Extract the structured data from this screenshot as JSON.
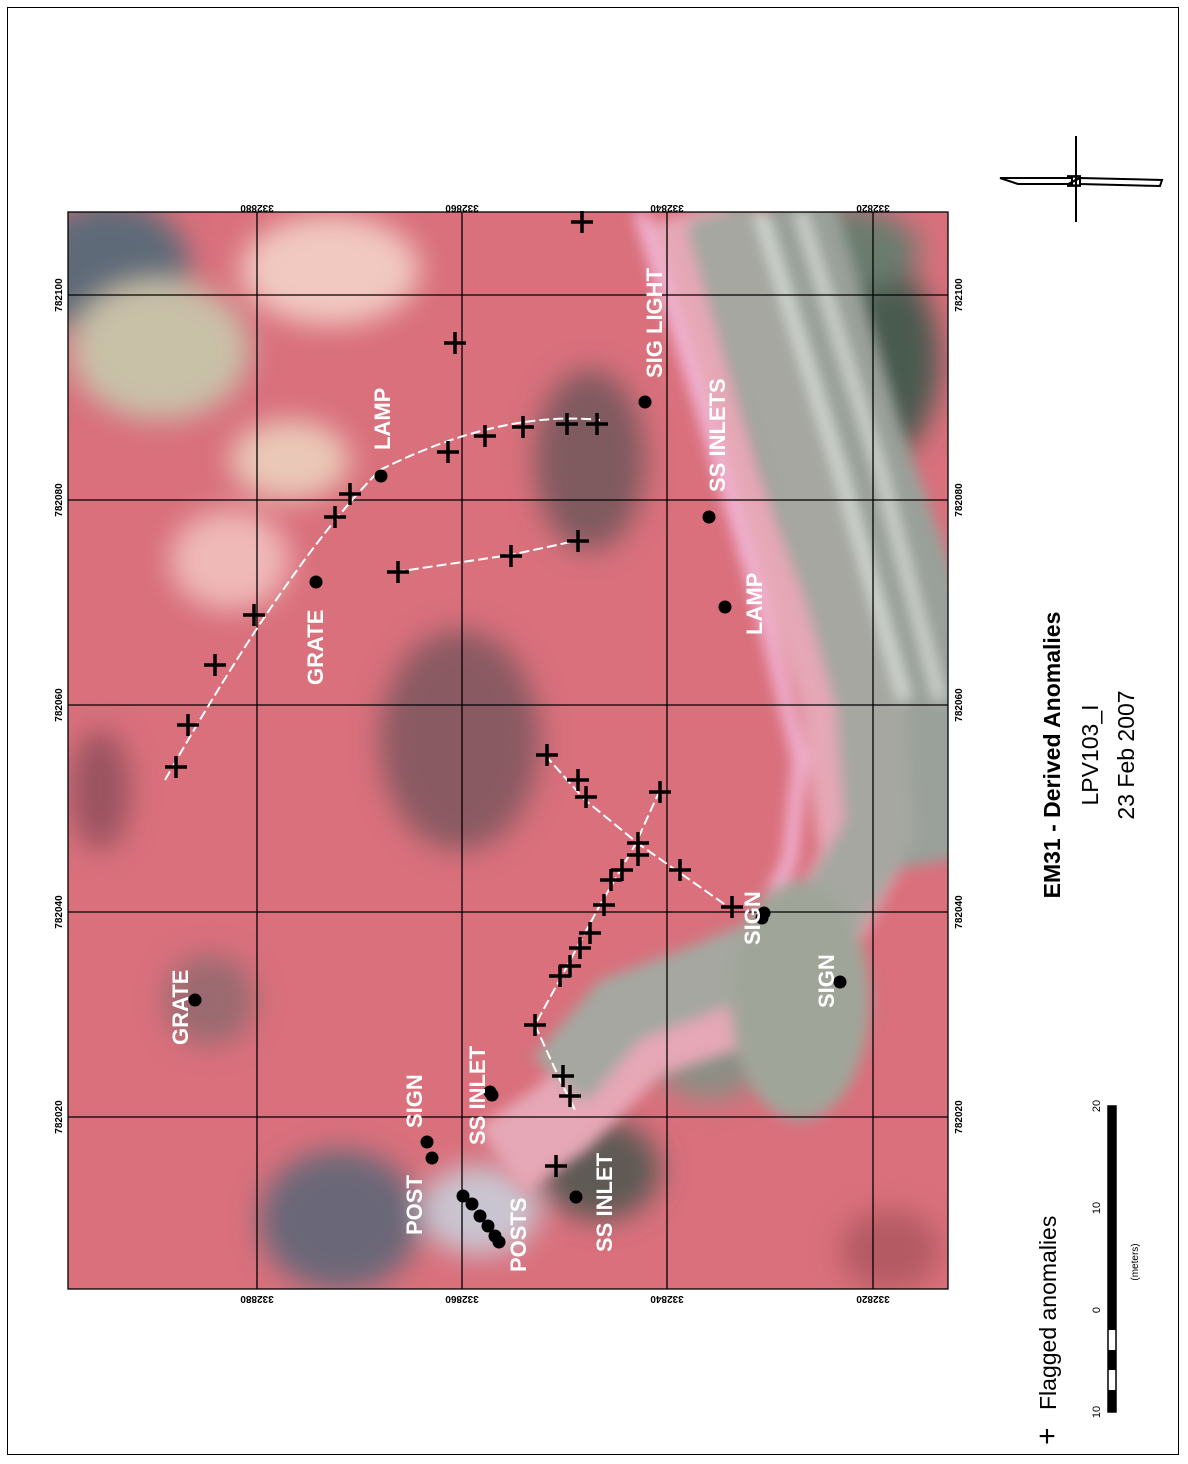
{
  "title": "EM31 - Derived Anomalies",
  "subtitle": "LPV103_I",
  "date": "23 Feb 2007",
  "legend": {
    "symbol": "+",
    "label": "Flagged anomalies"
  },
  "scalebar": {
    "labels": [
      "10",
      "0",
      "10",
      "20"
    ],
    "unit": "(meters)"
  },
  "north_arrow": {
    "label": "N"
  },
  "grid": {
    "easting_labels": [
      "332880",
      "332860",
      "332840",
      "332820"
    ],
    "northing_labels": [
      "782100",
      "782080",
      "782060",
      "782040",
      "782020"
    ]
  },
  "features": [
    {
      "name": "grate-label-1",
      "text": "GRATE"
    },
    {
      "name": "grate-label-2",
      "text": "GRATE"
    },
    {
      "name": "lamp-label-1",
      "text": "LAMP"
    },
    {
      "name": "lamp-label-2",
      "text": "LAMP"
    },
    {
      "name": "sig-light-label",
      "text": "SIG LIGHT"
    },
    {
      "name": "ss-inlets-label",
      "text": "SS INLETS"
    },
    {
      "name": "sign-label-1",
      "text": "SIGN"
    },
    {
      "name": "sign-label-2",
      "text": "SIGN"
    },
    {
      "name": "sign-label-3",
      "text": "SIGN"
    },
    {
      "name": "post-label",
      "text": "POST"
    },
    {
      "name": "posts-label",
      "text": "POSTS"
    },
    {
      "name": "ss-inlet-label-1",
      "text": "SS INLET"
    },
    {
      "name": "ss-inlet-label-2",
      "text": "SS INLET"
    }
  ],
  "colors": {
    "imagery_base": "#d9707c",
    "road": "#a9aaa0",
    "grid": "#000000"
  }
}
